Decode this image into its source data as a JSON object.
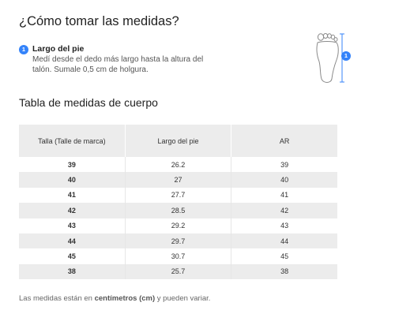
{
  "title": "¿Cómo tomar las medidas?",
  "step": {
    "number": "1",
    "label": "Largo del pie",
    "description": "Medí desde el dedo más largo hasta la altura del talón. Sumale 0,5 cm de holgura."
  },
  "illustration": {
    "icon": "foot-measure-icon",
    "badge": "1",
    "accent": "#3483fa"
  },
  "table": {
    "title": "Tabla de medidas de cuerpo",
    "headers": [
      "Talla (Talle de marca)",
      "Largo del pie",
      "AR"
    ],
    "rows": [
      [
        "39",
        "26.2",
        "39"
      ],
      [
        "40",
        "27",
        "40"
      ],
      [
        "41",
        "27.7",
        "41"
      ],
      [
        "42",
        "28.5",
        "42"
      ],
      [
        "43",
        "29.2",
        "43"
      ],
      [
        "44",
        "29.7",
        "44"
      ],
      [
        "45",
        "30.7",
        "45"
      ],
      [
        "38",
        "25.7",
        "38"
      ]
    ]
  },
  "footer": {
    "before": "Las medidas están en ",
    "bold": "centímetros (cm)",
    "after": " y pueden variar."
  }
}
